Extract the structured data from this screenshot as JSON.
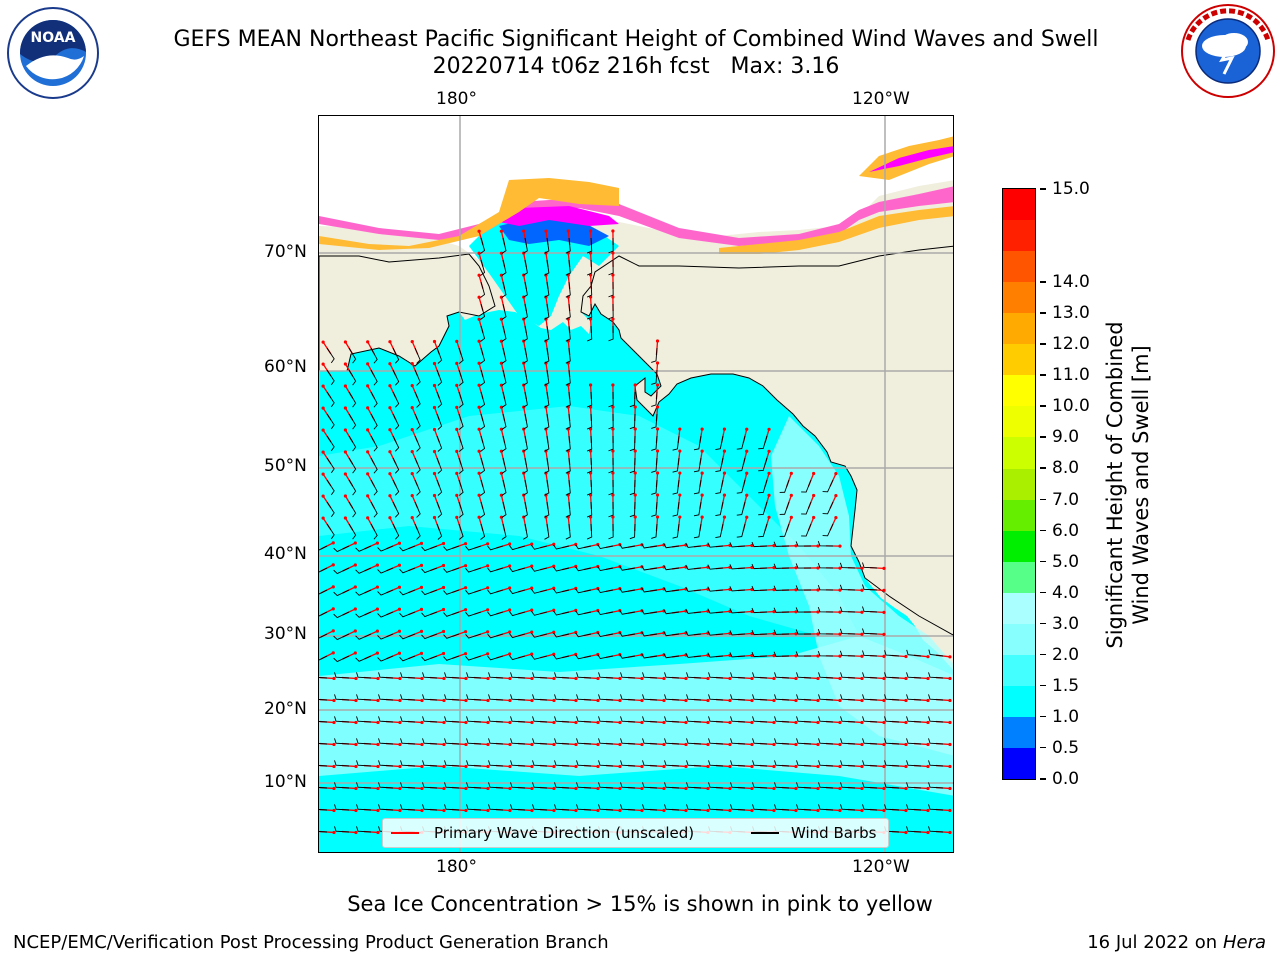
{
  "header": {
    "title_line1": "GEFS MEAN Northeast Pacific Significant Height of Combined Wind Waves and Swell",
    "title_line2": "20220714 t06z 216h fcst   Max: 3.16"
  },
  "logos": {
    "left": {
      "name": "noaa-logo",
      "text": "NOAA"
    },
    "right": {
      "name": "national-weather-service-logo",
      "text": "NATIONAL WEATHER SERVICE"
    }
  },
  "map": {
    "lon_labels_top": [
      "180°",
      "120°W"
    ],
    "lon_labels_bottom": [
      "180°",
      "120°W"
    ],
    "lat_labels": [
      "70°N",
      "60°N",
      "50°N",
      "40°N",
      "30°N",
      "20°N",
      "10°N"
    ],
    "colors": {
      "land": "#f0eedd",
      "ocean_low": "#00ffff",
      "ocean_mid": "#44ffff",
      "ocean_high": "#aaffff",
      "sea_ice_pink": "#ff66cc",
      "sea_ice_magenta": "#ff00ff",
      "sea_ice_orange": "#ffbb33",
      "ice_edge_blue": "#0066ff",
      "wave_arrow": "#ff0000",
      "wind_barb": "#000000",
      "grid": "#aaaaaa"
    }
  },
  "legend": {
    "wave_label": "Primary Wave Direction (unscaled)",
    "wind_label": "Wind Barbs",
    "wave_color": "#ff0000",
    "wind_color": "#000000"
  },
  "colorbar": {
    "label_line1": "Significant Height of Combined",
    "label_line2": "Wind Waves and Swell [m]",
    "ticks": [
      "0.0",
      "0.5",
      "1.0",
      "1.5",
      "2.0",
      "3.0",
      "4.0",
      "5.0",
      "6.0",
      "7.0",
      "8.0",
      "9.0",
      "10.0",
      "11.0",
      "12.0",
      "13.0",
      "14.0",
      "15.0"
    ],
    "colors": [
      "#0000ff",
      "#0080ff",
      "#00ffff",
      "#44ffff",
      "#88ffff",
      "#aaffff",
      "#55ff88",
      "#00ee00",
      "#66ee00",
      "#aaee00",
      "#ccff00",
      "#eeff00",
      "#ffff00",
      "#ffcc00",
      "#ffaa00",
      "#ff8000",
      "#ff5500",
      "#ff2000",
      "#ff0000"
    ]
  },
  "footnote": "Sea Ice Concentration > 15% is shown in pink to yellow",
  "footer": {
    "left": "NCEP/EMC/Verification Post Processing Product Generation Branch",
    "right_prefix": "16 Jul 2022 on ",
    "right_host": "Hera"
  }
}
